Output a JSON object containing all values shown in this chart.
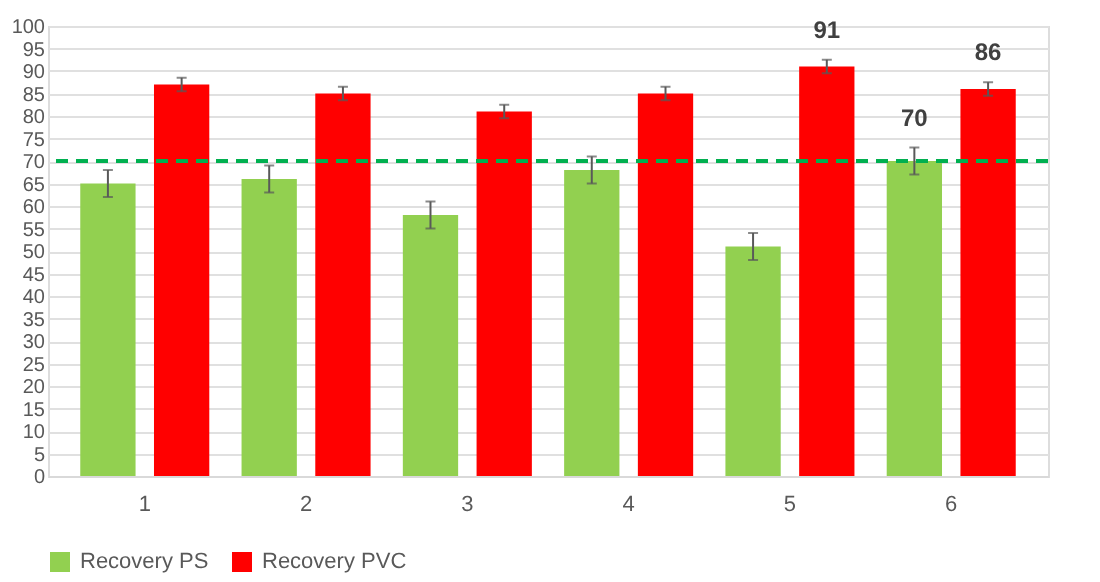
{
  "chart_data": {
    "type": "bar",
    "categories": [
      "1",
      "2",
      "3",
      "4",
      "5",
      "6"
    ],
    "series": [
      {
        "name": "Recovery PS",
        "color": "#92d050",
        "values": [
          65,
          66,
          58,
          68,
          51,
          70
        ],
        "errors": [
          3,
          3,
          3,
          3,
          3,
          3
        ],
        "value_labels": [
          null,
          null,
          null,
          null,
          null,
          "70"
        ]
      },
      {
        "name": "Recovery PVC",
        "color": "#ff0000",
        "values": [
          87,
          85,
          81,
          85,
          91,
          86
        ],
        "errors": [
          1.5,
          1.5,
          1.5,
          1.5,
          1.5,
          1.5
        ],
        "value_labels": [
          null,
          null,
          null,
          null,
          "91",
          "86"
        ]
      }
    ],
    "ylim": [
      0,
      100
    ],
    "yticks": [
      0,
      5,
      10,
      15,
      20,
      25,
      30,
      35,
      40,
      45,
      50,
      55,
      60,
      65,
      70,
      75,
      80,
      85,
      90,
      95,
      100
    ],
    "ref_lines": [
      {
        "axis": "y",
        "value": 70,
        "color": "#00b050",
        "line_style": "dashed"
      }
    ],
    "grid": "y",
    "legend": "bottom"
  }
}
